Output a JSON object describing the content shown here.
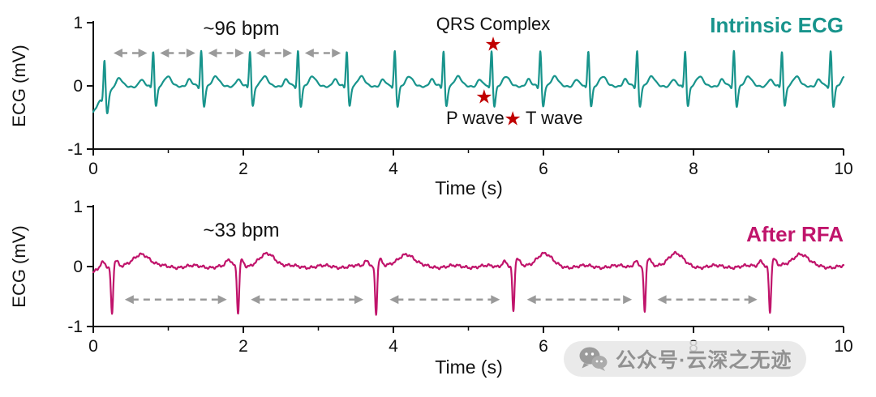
{
  "figure": {
    "watermark": {
      "text": "公众号·云深之无迹",
      "icon": "wechat-icon"
    }
  },
  "chart_data": [
    {
      "id": "intrinsic-ecg",
      "type": "line",
      "panel_label": "Intrinsic ECG",
      "rate_label": "~96 bpm",
      "xlabel": "Time (s)",
      "ylabel": "ECG (mV)",
      "xlim": [
        0,
        10
      ],
      "ylim": [
        -1,
        1
      ],
      "xticks": [
        0,
        2,
        4,
        6,
        8,
        10
      ],
      "xminor": [
        1,
        3,
        5,
        7,
        9
      ],
      "yticks": [
        1,
        0,
        -1
      ],
      "color": "#18948C",
      "heart_rate_bpm": 96,
      "beats": [
        0.15,
        0.8,
        1.44,
        2.09,
        2.73,
        3.38,
        4.02,
        4.67,
        5.31,
        5.96,
        6.6,
        7.25,
        7.89,
        8.54,
        9.18,
        9.83
      ],
      "morphology": [
        {
          "wave": "P",
          "dt": -0.16,
          "amp": 0.1,
          "sigma": 0.03
        },
        {
          "wave": "Q",
          "dt": -0.032,
          "amp": -0.05,
          "sigma": 0.01
        },
        {
          "wave": "R",
          "dt": 0,
          "amp": 0.6,
          "sigma": 0.013
        },
        {
          "wave": "S",
          "dt": 0.034,
          "amp": -0.33,
          "sigma": 0.018
        },
        {
          "wave": "T",
          "dt": 0.19,
          "amp": 0.14,
          "sigma": 0.045
        }
      ],
      "start": {
        "amp": -0.52,
        "tau": 0.12
      },
      "noise": [
        {
          "amp": 0.012,
          "freq": 3.1,
          "phase": 0.5
        },
        {
          "amp": 0.009,
          "freq": 11.7,
          "phase": 2.2
        }
      ],
      "rr_arrows": {
        "y": 0.52,
        "color": "#9a9a9a",
        "spans": [
          [
            0.27,
            0.72
          ],
          [
            0.89,
            1.36
          ],
          [
            1.53,
            2.01
          ],
          [
            2.17,
            2.65
          ],
          [
            2.82,
            3.3
          ]
        ]
      },
      "markers": [
        {
          "name": "qrs-complex-star",
          "glyph": "★",
          "x": 5.33,
          "y": 0.66,
          "color": "#C00000"
        },
        {
          "name": "p-wave-star",
          "glyph": "★",
          "x": 5.21,
          "y": -0.17,
          "color": "#C00000"
        },
        {
          "name": "t-wave-star",
          "glyph": "★",
          "x": 5.59,
          "y": -0.52,
          "color": "#C00000"
        }
      ],
      "annotations": {
        "qrs": "QRS Complex",
        "p": "P wave",
        "t": "T wave"
      }
    },
    {
      "id": "after-rfa",
      "type": "line",
      "panel_label": "After RFA",
      "rate_label": "~33 bpm",
      "xlabel": "Time (s)",
      "ylabel": "ECG (mV)",
      "xlim": [
        0,
        10
      ],
      "ylim": [
        -1,
        1
      ],
      "xticks": [
        0,
        2,
        4,
        6,
        8,
        10
      ],
      "xminor": [
        1,
        3,
        5,
        7,
        9
      ],
      "yticks": [
        1,
        0,
        -1
      ],
      "color": "#C0146B",
      "heart_rate_bpm": 33,
      "beats": [
        0.25,
        1.93,
        3.77,
        5.6,
        7.35,
        9.02
      ],
      "morphology": [
        {
          "wave": "pre-bump",
          "dt": -0.12,
          "amp": 0.1,
          "sigma": 0.035
        },
        {
          "wave": "spike-down",
          "dt": 0,
          "amp": -0.8,
          "sigma": 0.014
        },
        {
          "wave": "rebound",
          "dt": 0.05,
          "amp": 0.12,
          "sigma": 0.03
        },
        {
          "wave": "T",
          "dt": 0.4,
          "amp": 0.22,
          "sigma": 0.1
        }
      ],
      "start": {
        "amp": -0.12,
        "tau": 0.1
      },
      "noise": [
        {
          "amp": 0.02,
          "freq": 2.3,
          "phase": 1.1
        },
        {
          "amp": 0.015,
          "freq": 9.7,
          "phase": 0.3
        },
        {
          "amp": 0.01,
          "freq": 23.7,
          "phase": 2.8
        }
      ],
      "rr_arrows": {
        "y": -0.55,
        "color": "#9a9a9a",
        "spans": [
          [
            0.42,
            1.78
          ],
          [
            2.1,
            3.6
          ],
          [
            3.95,
            5.42
          ],
          [
            5.78,
            7.18
          ],
          [
            7.52,
            8.85
          ]
        ]
      },
      "markers": [],
      "annotations": {}
    }
  ]
}
